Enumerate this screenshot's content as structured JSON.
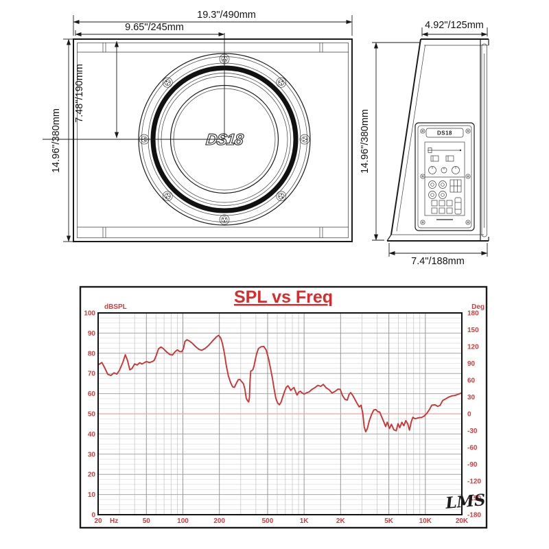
{
  "drawing": {
    "front_view": {
      "dim_width": "19.3\"/490mm",
      "dim_half_width": "9.65\"/245mm",
      "dim_height": "14.96\"/380mm",
      "dim_center_height": "7.48\"/190mm",
      "speaker_logo": "DS18"
    },
    "side_view": {
      "dim_top_depth": "4.92\"/125mm",
      "dim_height": "14.96\"/380mm",
      "dim_bottom_depth": "7.4\"/188mm",
      "amp_logo": "DS18"
    }
  },
  "chart_data": {
    "type": "line",
    "title": "SPL vs Freq",
    "watermark": "LMS",
    "x_axis": {
      "scale": "log",
      "min": 20,
      "max": 20000,
      "unit_label": "Hz",
      "ticks": [
        {
          "value": 20,
          "label": "20"
        },
        {
          "value": 50,
          "label": "50"
        },
        {
          "value": 100,
          "label": "100"
        },
        {
          "value": 200,
          "label": "200"
        },
        {
          "value": 500,
          "label": "500"
        },
        {
          "value": 1000,
          "label": "1K"
        },
        {
          "value": 2000,
          "label": "2K"
        },
        {
          "value": 5000,
          "label": "5K"
        },
        {
          "value": 10000,
          "label": "10K"
        },
        {
          "value": 20000,
          "label": "20K"
        }
      ],
      "minor_ticks": [
        30,
        40,
        60,
        70,
        80,
        90,
        300,
        400,
        600,
        700,
        800,
        900,
        3000,
        4000,
        6000,
        7000,
        8000,
        9000
      ]
    },
    "y_left": {
      "label": "dBSPL",
      "min": 0,
      "max": 100,
      "tick_step": 10,
      "minor_step": 2.5
    },
    "y_right": {
      "label": "Deg",
      "min": -180,
      "max": 180,
      "tick_step": 30
    },
    "reference_line": {
      "value_db": 50,
      "value_deg": 0
    },
    "colors": {
      "curve": "#cc3333",
      "tick_labels": "#d6393c",
      "zero_label": "#2f2f6e",
      "title": "#d92b2b",
      "reference_line": "#f2a0a0",
      "grid_major": "#a6a6a6",
      "grid_minor": "#dedede"
    },
    "series": [
      {
        "name": "SPL",
        "points": [
          [
            20,
            74.3
          ],
          [
            21.5,
            75.4
          ],
          [
            22.5,
            73.2
          ],
          [
            24,
            69.6
          ],
          [
            25.5,
            69.0
          ],
          [
            27,
            70.3
          ],
          [
            28.5,
            69.7
          ],
          [
            30,
            71.6
          ],
          [
            32,
            75.6
          ],
          [
            33.5,
            79.3
          ],
          [
            35,
            76.3
          ],
          [
            36.5,
            71.8
          ],
          [
            38,
            72.4
          ],
          [
            40,
            74.7
          ],
          [
            42,
            74.2
          ],
          [
            44,
            75.3
          ],
          [
            46,
            74.7
          ],
          [
            48,
            75.3
          ],
          [
            50,
            75.9
          ],
          [
            53,
            75.4
          ],
          [
            56,
            75.9
          ],
          [
            58,
            76.5
          ],
          [
            60,
            78.6
          ],
          [
            63,
            82.2
          ],
          [
            66,
            83.1
          ],
          [
            69,
            82.3
          ],
          [
            73,
            80.8
          ],
          [
            78,
            79.4
          ],
          [
            82,
            79.1
          ],
          [
            86,
            80.7
          ],
          [
            90,
            81.7
          ],
          [
            94,
            80.9
          ],
          [
            98,
            80.8
          ],
          [
            101,
            82.2
          ],
          [
            104,
            85.9
          ],
          [
            108,
            86.7
          ],
          [
            113,
            86.1
          ],
          [
            120,
            84.9
          ],
          [
            128,
            83.2
          ],
          [
            136,
            81.9
          ],
          [
            143,
            81.5
          ],
          [
            152,
            82.3
          ],
          [
            163,
            83.9
          ],
          [
            175,
            86.0
          ],
          [
            188,
            88.0
          ],
          [
            197,
            88.9
          ],
          [
            205,
            87.6
          ],
          [
            212,
            84.9
          ],
          [
            220,
            80.0
          ],
          [
            228,
            74.0
          ],
          [
            237,
            68.9
          ],
          [
            247,
            65.6
          ],
          [
            257,
            63.4
          ],
          [
            266,
            63.1
          ],
          [
            276,
            65.1
          ],
          [
            286,
            66.9
          ],
          [
            296,
            67.0
          ],
          [
            306,
            65.9
          ],
          [
            316,
            64.9
          ],
          [
            325,
            62.1
          ],
          [
            333,
            57.7
          ],
          [
            341,
            56.6
          ],
          [
            349,
            55.9
          ],
          [
            354,
            58.1
          ],
          [
            358,
            66.1
          ],
          [
            363,
            71.2
          ],
          [
            370,
            71.4
          ],
          [
            378,
            71.9
          ],
          [
            386,
            73.6
          ],
          [
            395,
            76.6
          ],
          [
            405,
            79.6
          ],
          [
            420,
            82.3
          ],
          [
            440,
            83.2
          ],
          [
            465,
            83.4
          ],
          [
            487,
            81.6
          ],
          [
            510,
            77.1
          ],
          [
            530,
            72.1
          ],
          [
            548,
            67.6
          ],
          [
            565,
            62.6
          ],
          [
            585,
            57.6
          ],
          [
            605,
            55.3
          ],
          [
            625,
            54.5
          ],
          [
            645,
            55.7
          ],
          [
            668,
            58.6
          ],
          [
            690,
            61.1
          ],
          [
            712,
            63.1
          ],
          [
            735,
            63.9
          ],
          [
            755,
            62.9
          ],
          [
            775,
            61.6
          ],
          [
            800,
            62.4
          ],
          [
            825,
            63.0
          ],
          [
            850,
            61.0
          ],
          [
            875,
            59.3
          ],
          [
            900,
            60.7
          ],
          [
            930,
            61.2
          ],
          [
            965,
            60.3
          ],
          [
            1000,
            59.8
          ],
          [
            1050,
            60.4
          ],
          [
            1100,
            60.9
          ],
          [
            1160,
            62.1
          ],
          [
            1230,
            63.0
          ],
          [
            1300,
            64.1
          ],
          [
            1370,
            63.6
          ],
          [
            1440,
            64.6
          ],
          [
            1520,
            62.9
          ],
          [
            1610,
            61.9
          ],
          [
            1700,
            60.3
          ],
          [
            1800,
            61.1
          ],
          [
            1900,
            62.2
          ],
          [
            1985,
            62.1
          ],
          [
            2070,
            59.1
          ],
          [
            2180,
            57.1
          ],
          [
            2270,
            56.8
          ],
          [
            2350,
            59.6
          ],
          [
            2420,
            60.5
          ],
          [
            2500,
            59.4
          ],
          [
            2600,
            57.6
          ],
          [
            2720,
            55.4
          ],
          [
            2850,
            53.4
          ],
          [
            2950,
            54.3
          ],
          [
            3050,
            50.1
          ],
          [
            3130,
            43.6
          ],
          [
            3220,
            41.1
          ],
          [
            3320,
            42.6
          ],
          [
            3450,
            46.6
          ],
          [
            3600,
            49.6
          ],
          [
            3750,
            51.9
          ],
          [
            3900,
            52.1
          ],
          [
            4050,
            51.1
          ],
          [
            4200,
            50.9
          ],
          [
            4350,
            48.6
          ],
          [
            4500,
            46.6
          ],
          [
            4700,
            43.7
          ],
          [
            4850,
            45.9
          ],
          [
            5050,
            42.7
          ],
          [
            5250,
            44.8
          ],
          [
            5500,
            42.1
          ],
          [
            5750,
            41.6
          ],
          [
            5950,
            45.1
          ],
          [
            6150,
            43.1
          ],
          [
            6400,
            45.8
          ],
          [
            6650,
            44.1
          ],
          [
            6900,
            46.6
          ],
          [
            7150,
            45.1
          ],
          [
            7400,
            41.9
          ],
          [
            7650,
            46.1
          ],
          [
            7900,
            48.3
          ],
          [
            8200,
            47.6
          ],
          [
            8500,
            47.8
          ],
          [
            8900,
            48.1
          ],
          [
            9300,
            48.2
          ],
          [
            9800,
            48.9
          ],
          [
            10300,
            50.3
          ],
          [
            10800,
            52.1
          ],
          [
            11300,
            54.3
          ],
          [
            12000,
            54.5
          ],
          [
            12600,
            53.7
          ],
          [
            13200,
            54.1
          ],
          [
            13900,
            56.6
          ],
          [
            14700,
            57.4
          ],
          [
            15600,
            58.3
          ],
          [
            16600,
            58.9
          ],
          [
            17600,
            59.1
          ],
          [
            18700,
            59.7
          ],
          [
            20000,
            60.4
          ]
        ]
      }
    ]
  }
}
